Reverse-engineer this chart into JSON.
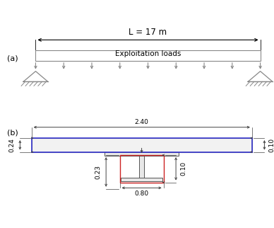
{
  "fig_width": 3.88,
  "fig_height": 3.22,
  "dpi": 100,
  "bg_color": "#ffffff",
  "label_a": "(a)",
  "label_b": "(b)",
  "gray": "#888888",
  "dark": "#555555",
  "blue": "#3333cc",
  "red": "#cc2222",
  "dim_color": "#444444",
  "title_L": "L = 17 m",
  "label_exploit": "Exploitation loads",
  "dim_240": "2.40",
  "dim_024": "0.24",
  "dim_010_top": "0.10",
  "dim_080": "0.80",
  "dim_023": "0.23",
  "dim_010_bot": "0.10"
}
